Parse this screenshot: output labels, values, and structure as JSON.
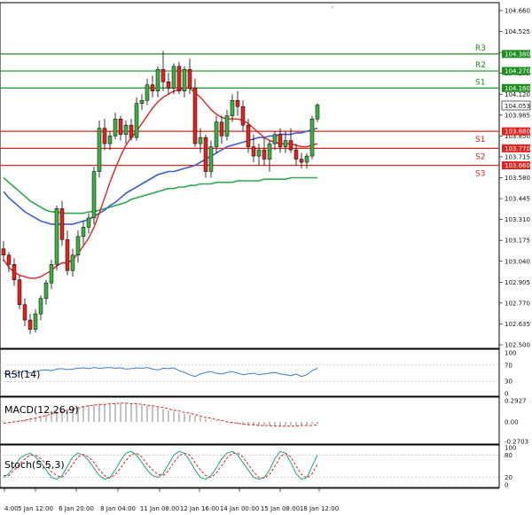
{
  "chart_data": [
    {
      "type": "candlestick",
      "name": "price",
      "ylim": [
        102.5,
        104.66
      ],
      "y_ticks": [
        "104.660",
        "104.525",
        "104.390",
        "104.255",
        "104.120",
        "103.985",
        "103.850",
        "103.715",
        "103.580",
        "103.445",
        "103.310",
        "103.175",
        "103.040",
        "102.905",
        "102.770",
        "102.635",
        "102.500"
      ],
      "x_ticks": [
        "4:00",
        "5 Jan 12:00",
        "6 Jan 20:00",
        "8 Jan 04:00",
        "11 Jan 08:00",
        "12 Jan 16:00",
        "14 Jan 00:00",
        "15 Jan 08:00",
        "18 Jan 12:00"
      ],
      "current_price": "104.053",
      "candles": [
        [
          103.12,
          103.17,
          103.04,
          103.08
        ],
        [
          103.08,
          103.1,
          102.97,
          103.02
        ],
        [
          103.02,
          103.06,
          102.88,
          102.92
        ],
        [
          102.92,
          102.95,
          102.73,
          102.76
        ],
        [
          102.76,
          102.8,
          102.62,
          102.66
        ],
        [
          102.66,
          102.7,
          102.57,
          102.6
        ],
        [
          102.6,
          102.73,
          102.58,
          102.7
        ],
        [
          102.7,
          102.82,
          102.66,
          102.8
        ],
        [
          102.8,
          102.92,
          102.76,
          102.9
        ],
        [
          102.9,
          103.05,
          102.86,
          103.02
        ],
        [
          103.02,
          103.4,
          102.98,
          103.38
        ],
        [
          103.38,
          103.43,
          103.14,
          103.18
        ],
        [
          103.18,
          103.24,
          102.95,
          102.98
        ],
        [
          102.98,
          103.12,
          102.94,
          103.08
        ],
        [
          103.08,
          103.24,
          103.03,
          103.2
        ],
        [
          103.2,
          103.3,
          103.15,
          103.26
        ],
        [
          103.26,
          103.35,
          103.22,
          103.32
        ],
        [
          103.32,
          103.65,
          103.28,
          103.62
        ],
        [
          103.62,
          103.95,
          103.58,
          103.9
        ],
        [
          103.9,
          103.96,
          103.76,
          103.8
        ],
        [
          103.8,
          103.88,
          103.76,
          103.85
        ],
        [
          103.85,
          104.0,
          103.83,
          103.96
        ],
        [
          103.96,
          103.98,
          103.82,
          103.86
        ],
        [
          103.86,
          103.95,
          103.8,
          103.92
        ],
        [
          103.92,
          103.96,
          103.82,
          103.84
        ],
        [
          103.84,
          104.1,
          103.82,
          104.06
        ],
        [
          104.06,
          104.12,
          104.02,
          104.08
        ],
        [
          104.08,
          104.22,
          104.05,
          104.18
        ],
        [
          104.18,
          104.24,
          104.1,
          104.14
        ],
        [
          104.14,
          104.3,
          104.1,
          104.28
        ],
        [
          104.28,
          104.4,
          104.14,
          104.2
        ],
        [
          104.2,
          104.26,
          104.12,
          104.16
        ],
        [
          104.16,
          104.32,
          104.12,
          104.3
        ],
        [
          104.3,
          104.33,
          104.12,
          104.14
        ],
        [
          104.14,
          104.3,
          104.1,
          104.28
        ],
        [
          104.28,
          104.35,
          104.12,
          104.16
        ],
        [
          104.16,
          104.22,
          103.78,
          103.8
        ],
        [
          103.8,
          103.9,
          103.74,
          103.84
        ],
        [
          103.84,
          103.86,
          103.58,
          103.62
        ],
        [
          103.62,
          103.82,
          103.58,
          103.78
        ],
        [
          103.78,
          103.98,
          103.74,
          103.94
        ],
        [
          103.94,
          103.98,
          103.8,
          103.85
        ],
        [
          103.85,
          104.02,
          103.82,
          103.98
        ],
        [
          103.98,
          104.12,
          103.94,
          104.08
        ],
        [
          104.08,
          104.14,
          103.98,
          104.04
        ],
        [
          104.04,
          104.08,
          103.88,
          103.92
        ],
        [
          103.92,
          103.96,
          103.74,
          103.78
        ],
        [
          103.78,
          103.86,
          103.68,
          103.72
        ],
        [
          103.72,
          103.8,
          103.66,
          103.76
        ],
        [
          103.76,
          103.84,
          103.66,
          103.7
        ],
        [
          103.7,
          103.82,
          103.62,
          103.8
        ],
        [
          103.8,
          103.88,
          103.76,
          103.86
        ],
        [
          103.86,
          103.9,
          103.74,
          103.78
        ],
        [
          103.78,
          103.88,
          103.74,
          103.82
        ],
        [
          103.82,
          103.9,
          103.74,
          103.76
        ],
        [
          103.76,
          103.8,
          103.66,
          103.7
        ],
        [
          103.7,
          103.74,
          103.64,
          103.68
        ],
        [
          103.68,
          103.74,
          103.64,
          103.72
        ],
        [
          103.72,
          103.98,
          103.7,
          103.96
        ],
        [
          103.96,
          104.06,
          103.94,
          104.05
        ]
      ],
      "levels": [
        {
          "label": "R3",
          "value": 104.38,
          "badge": "104.380",
          "color": "#1e8e1e"
        },
        {
          "label": "R2",
          "value": 104.27,
          "badge": "104.270",
          "color": "#1e8e1e"
        },
        {
          "label": "S1",
          "value": 104.16,
          "badge": "104.160",
          "color": "#1e8e1e"
        },
        {
          "label": "S1",
          "value": 103.88,
          "badge": "103.880",
          "color": "#e0241f"
        },
        {
          "label": "S2",
          "value": 103.77,
          "badge": "103.770",
          "color": "#e0241f"
        },
        {
          "label": "S3",
          "value": 103.66,
          "badge": "103.660",
          "color": "#e0241f"
        }
      ],
      "ma_red": [
        103.05,
        103.0,
        102.97,
        102.95,
        102.94,
        102.93,
        102.93,
        102.94,
        102.96,
        102.98,
        103.01,
        103.03,
        103.03,
        103.05,
        103.09,
        103.14,
        103.19,
        103.26,
        103.35,
        103.45,
        103.55,
        103.64,
        103.72,
        103.79,
        103.84,
        103.88,
        103.93,
        103.98,
        104.03,
        104.07,
        104.1,
        104.12,
        104.14,
        104.15,
        104.16,
        104.16,
        104.13,
        104.1,
        104.06,
        104.02,
        103.99,
        103.97,
        103.96,
        103.96,
        103.96,
        103.95,
        103.93,
        103.9,
        103.87,
        103.84,
        103.82,
        103.81,
        103.8,
        103.8,
        103.8,
        103.79,
        103.78,
        103.78,
        103.79,
        103.8
      ],
      "ma_blue": [
        103.49,
        103.45,
        103.42,
        103.39,
        103.36,
        103.34,
        103.32,
        103.3,
        103.29,
        103.28,
        103.28,
        103.28,
        103.28,
        103.28,
        103.29,
        103.3,
        103.31,
        103.33,
        103.35,
        103.37,
        103.4,
        103.42,
        103.45,
        103.48,
        103.5,
        103.52,
        103.54,
        103.56,
        103.58,
        103.6,
        103.61,
        103.62,
        103.62,
        103.63,
        103.64,
        103.65,
        103.66,
        103.68,
        103.7,
        103.72,
        103.74,
        103.76,
        103.78,
        103.79,
        103.8,
        103.81,
        103.82,
        103.83,
        103.84,
        103.84,
        103.85,
        103.85,
        103.86,
        103.86,
        103.86,
        103.87,
        103.87,
        103.88,
        103.89,
        103.9
      ],
      "ma_green": [
        103.58,
        103.55,
        103.52,
        103.49,
        103.46,
        103.43,
        103.41,
        103.39,
        103.37,
        103.36,
        103.36,
        103.35,
        103.35,
        103.35,
        103.35,
        103.35,
        103.36,
        103.36,
        103.37,
        103.38,
        103.39,
        103.4,
        103.41,
        103.42,
        103.44,
        103.45,
        103.46,
        103.47,
        103.48,
        103.49,
        103.5,
        103.51,
        103.51,
        103.52,
        103.52,
        103.53,
        103.53,
        103.54,
        103.54,
        103.54,
        103.55,
        103.55,
        103.55,
        103.55,
        103.56,
        103.56,
        103.56,
        103.56,
        103.56,
        103.57,
        103.57,
        103.57,
        103.57,
        103.57,
        103.58,
        103.58,
        103.58,
        103.58,
        103.58,
        103.58
      ]
    },
    {
      "type": "line",
      "name": "RSI(14)",
      "ylim": [
        0,
        100
      ],
      "y_ticks": [
        "100",
        "70",
        "30",
        "0"
      ],
      "values": [
        50,
        48,
        49,
        52,
        55,
        50,
        54,
        57,
        58,
        56,
        60,
        61,
        59,
        60,
        62,
        63,
        61,
        64,
        62,
        63,
        64,
        62,
        63,
        60,
        61,
        63,
        62,
        64,
        60,
        58,
        62,
        61,
        63,
        56,
        52,
        46,
        42,
        48,
        52,
        54,
        50,
        48,
        52,
        54,
        50,
        46,
        48,
        50,
        46,
        48,
        50,
        52,
        48,
        46,
        44,
        48,
        42,
        46,
        56,
        62
      ]
    },
    {
      "type": "bar",
      "name": "MACD(12,26,9)",
      "ylim": [
        -0.2703,
        0.2927
      ],
      "y_ticks": [
        "0.2927",
        "0.00",
        "-0.2703"
      ],
      "values": [
        -0.01,
        0.0,
        0.01,
        0.02,
        0.03,
        0.05,
        0.06,
        0.08,
        0.1,
        0.12,
        0.14,
        0.16,
        0.18,
        0.2,
        0.21,
        0.22,
        0.23,
        0.24,
        0.25,
        0.25,
        0.25,
        0.26,
        0.26,
        0.26,
        0.25,
        0.24,
        0.23,
        0.22,
        0.21,
        0.2,
        0.18,
        0.16,
        0.14,
        0.12,
        0.11,
        0.1,
        0.08,
        0.06,
        0.04,
        0.02,
        0.01,
        0.0,
        -0.01,
        -0.02,
        -0.03,
        -0.04,
        -0.04,
        -0.05,
        -0.05,
        -0.05,
        -0.06,
        -0.06,
        -0.06,
        -0.05,
        -0.05,
        -0.05,
        -0.04,
        -0.04,
        -0.03,
        -0.03
      ],
      "signal": [
        -0.02,
        -0.01,
        0.0,
        0.01,
        0.02,
        0.04,
        0.05,
        0.07,
        0.09,
        0.11,
        0.12,
        0.14,
        0.16,
        0.18,
        0.19,
        0.21,
        0.22,
        0.23,
        0.24,
        0.24,
        0.25,
        0.25,
        0.26,
        0.26,
        0.25,
        0.25,
        0.24,
        0.23,
        0.22,
        0.21,
        0.2,
        0.18,
        0.16,
        0.15,
        0.13,
        0.12,
        0.1,
        0.08,
        0.06,
        0.05,
        0.03,
        0.02,
        0.0,
        -0.01,
        -0.02,
        -0.03,
        -0.04,
        -0.04,
        -0.05,
        -0.05,
        -0.05,
        -0.06,
        -0.06,
        -0.06,
        -0.06,
        -0.06,
        -0.05,
        -0.05,
        -0.05,
        -0.04
      ]
    },
    {
      "type": "line",
      "name": "Stoch(5,5,3)",
      "ylim": [
        0,
        100
      ],
      "y_ticks": [
        "100",
        "80",
        "20",
        "0"
      ],
      "k": [
        20,
        30,
        50,
        70,
        80,
        85,
        75,
        60,
        40,
        20,
        15,
        25,
        50,
        75,
        85,
        80,
        65,
        45,
        25,
        15,
        20,
        40,
        65,
        85,
        90,
        80,
        60,
        40,
        25,
        20,
        30,
        55,
        80,
        90,
        85,
        65,
        40,
        20,
        15,
        25,
        45,
        70,
        85,
        90,
        80,
        60,
        40,
        20,
        15,
        20,
        40,
        70,
        90,
        85,
        60,
        30,
        15,
        20,
        50,
        80
      ],
      "d": [
        25,
        25,
        40,
        55,
        70,
        80,
        80,
        70,
        55,
        35,
        25,
        20,
        35,
        55,
        75,
        82,
        75,
        60,
        40,
        25,
        18,
        28,
        45,
        65,
        82,
        85,
        75,
        55,
        40,
        28,
        25,
        38,
        60,
        78,
        85,
        80,
        60,
        40,
        25,
        20,
        32,
        52,
        72,
        85,
        85,
        75,
        55,
        35,
        20,
        18,
        28,
        50,
        75,
        85,
        75,
        50,
        28,
        18,
        30,
        55
      ]
    }
  ]
}
